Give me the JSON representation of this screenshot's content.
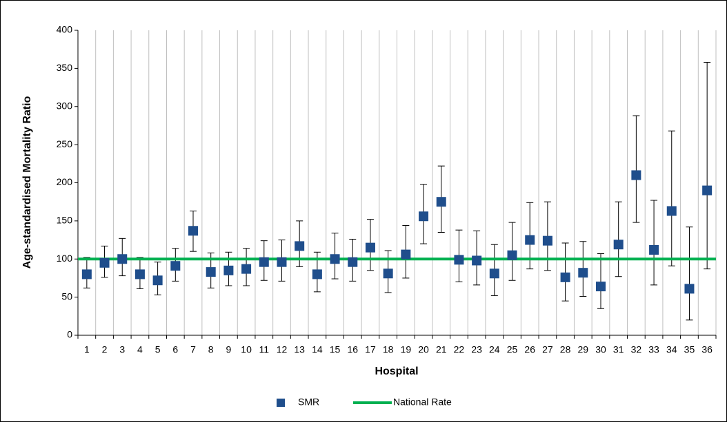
{
  "chart_data": {
    "type": "errorbar",
    "x_label": "Hospital",
    "y_label": "Age-standardised Mortality Ratio",
    "categories": [
      "1",
      "2",
      "3",
      "4",
      "5",
      "6",
      "7",
      "8",
      "9",
      "10",
      "11",
      "12",
      "13",
      "14",
      "15",
      "16",
      "17",
      "18",
      "19",
      "20",
      "21",
      "22",
      "23",
      "24",
      "25",
      "26",
      "27",
      "28",
      "29",
      "30",
      "31",
      "32",
      "33",
      "34",
      "35",
      "36"
    ],
    "series": [
      {
        "name": "SMR",
        "color": "#1f4e8c",
        "values": [
          80,
          95,
          100,
          80,
          72,
          91,
          137,
          83,
          85,
          87,
          96,
          96,
          117,
          80,
          100,
          96,
          115,
          81,
          106,
          156,
          175,
          99,
          98,
          81,
          105,
          125,
          124,
          76,
          82,
          64,
          119,
          210,
          112,
          163,
          61,
          190
        ],
        "lower": [
          62,
          76,
          78,
          61,
          53,
          71,
          110,
          62,
          65,
          65,
          72,
          71,
          90,
          57,
          74,
          71,
          85,
          56,
          75,
          120,
          135,
          70,
          66,
          52,
          72,
          87,
          85,
          45,
          51,
          35,
          77,
          148,
          66,
          91,
          20,
          87
        ],
        "upper": [
          102,
          117,
          127,
          102,
          96,
          114,
          163,
          108,
          109,
          114,
          124,
          125,
          150,
          109,
          134,
          126,
          152,
          111,
          144,
          198,
          222,
          138,
          137,
          119,
          148,
          174,
          175,
          121,
          123,
          107,
          175,
          288,
          177,
          268,
          142,
          358
        ]
      }
    ],
    "reference_line": {
      "name": "National Rate",
      "value": 100,
      "color": "#00b050"
    },
    "ylim": [
      0,
      400
    ],
    "yticks": [
      0,
      50,
      100,
      150,
      200,
      250,
      300,
      350,
      400
    ],
    "grid": true,
    "legend": "bottom"
  }
}
